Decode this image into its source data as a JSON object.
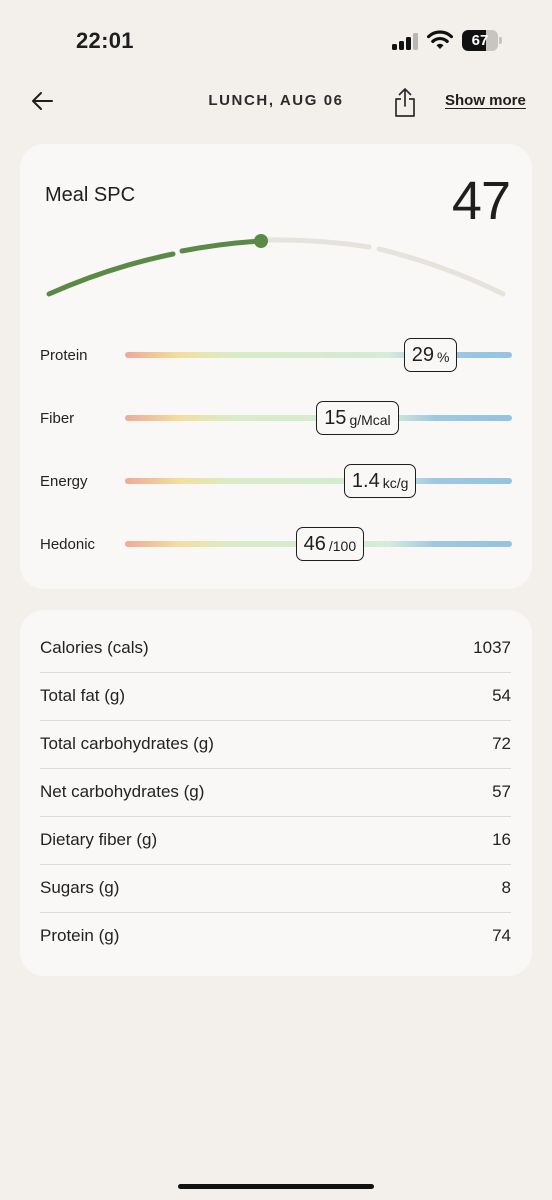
{
  "status": {
    "time": "22:01",
    "battery": "67",
    "battery_level": 0.67
  },
  "nav": {
    "title": "LUNCH, AUG 06",
    "show_more": "Show more"
  },
  "score": {
    "label": "Meal SPC",
    "value": "47",
    "gauge_level": 0.47
  },
  "metrics": [
    {
      "label": "Protein",
      "value": "29",
      "unit": "%",
      "position": 0.79
    },
    {
      "label": "Fiber",
      "value": "15",
      "unit": "g/Mcal",
      "position": 0.6
    },
    {
      "label": "Energy",
      "value": "1.4",
      "unit": "kc/g",
      "position": 0.66
    },
    {
      "label": "Hedonic",
      "value": "46",
      "unit": "/100",
      "position": 0.53
    }
  ],
  "nutrition": [
    {
      "label": "Calories (cals)",
      "value": "1037"
    },
    {
      "label": "Total fat (g)",
      "value": "54"
    },
    {
      "label": "Total carbohydrates (g)",
      "value": "72"
    },
    {
      "label": "Net carbohydrates (g)",
      "value": "57"
    },
    {
      "label": "Dietary fiber (g)",
      "value": "16"
    },
    {
      "label": "Sugars (g)",
      "value": "8"
    },
    {
      "label": "Protein (g)",
      "value": "74"
    }
  ],
  "colors": {
    "gauge_active": "#5b8a47",
    "gauge_inactive": "#e6e3dd"
  }
}
